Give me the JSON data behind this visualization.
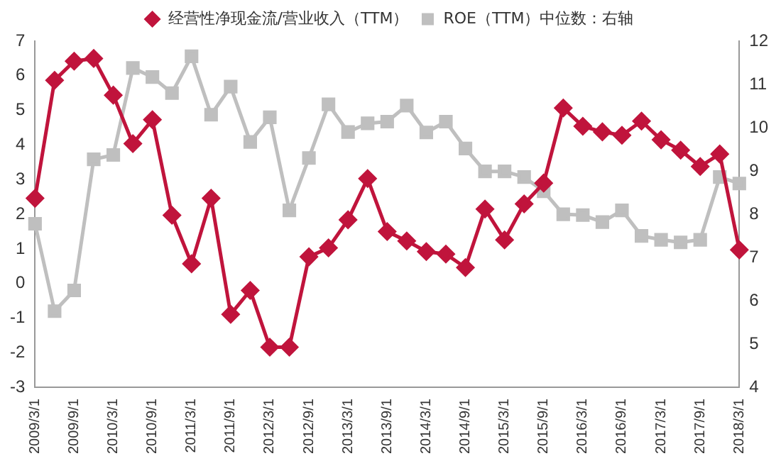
{
  "chart_data": {
    "type": "line",
    "categories": [
      "2009/3/1",
      null,
      "2009/9/1",
      null,
      "2010/3/1",
      null,
      "2010/9/1",
      null,
      "2011/3/1",
      null,
      "2011/9/1",
      null,
      "2012/3/1",
      null,
      "2012/9/1",
      null,
      "2013/3/1",
      null,
      "2013/9/1",
      null,
      "2014/3/1",
      null,
      "2014/9/1",
      null,
      "2015/3/1",
      null,
      "2015/9/1",
      null,
      "2016/3/1",
      null,
      "2016/9/1",
      null,
      "2017/3/1",
      null,
      "2017/9/1",
      null,
      "2018/3/1"
    ],
    "series": [
      {
        "name": "经营性净现金流/营业收入（TTM）",
        "color": "#c0143c",
        "marker": "diamond",
        "values": [
          2.46,
          5.87,
          6.42,
          6.5,
          5.44,
          4.04,
          4.73,
          1.97,
          0.57,
          2.46,
          -0.89,
          -0.2,
          -1.84,
          -1.84,
          0.77,
          1.03,
          1.84,
          3.03,
          1.5,
          1.23,
          0.92,
          0.85,
          0.46,
          2.15,
          1.26,
          2.3,
          2.9,
          5.07,
          4.54,
          4.38,
          4.28,
          4.69,
          4.15,
          3.85,
          3.38,
          3.74,
          0.97
        ]
      },
      {
        "name": "ROE（TTM）中位数：右轴",
        "color": "#bfbfbf",
        "marker": "square",
        "axis": "y2",
        "values": [
          7.78,
          5.76,
          6.24,
          9.27,
          9.37,
          11.38,
          11.17,
          10.8,
          11.65,
          10.3,
          10.95,
          9.67,
          10.24,
          8.09,
          9.3,
          10.54,
          9.9,
          10.1,
          10.14,
          10.51,
          9.89,
          10.14,
          9.52,
          8.99,
          8.99,
          8.86,
          8.53,
          8.0,
          7.98,
          7.82,
          8.09,
          7.5,
          7.41,
          7.35,
          7.41,
          8.86,
          8.71
        ]
      }
    ],
    "ylim": [
      -3,
      7
    ],
    "yticks": [
      -3,
      -2,
      -1,
      0,
      1,
      2,
      3,
      4,
      5,
      6,
      7
    ],
    "y2lim": [
      4,
      12
    ],
    "y2ticks": [
      4,
      5,
      6,
      7,
      8,
      9,
      10,
      11,
      12
    ],
    "grid": false,
    "legend": "top",
    "line_style": "solid"
  }
}
